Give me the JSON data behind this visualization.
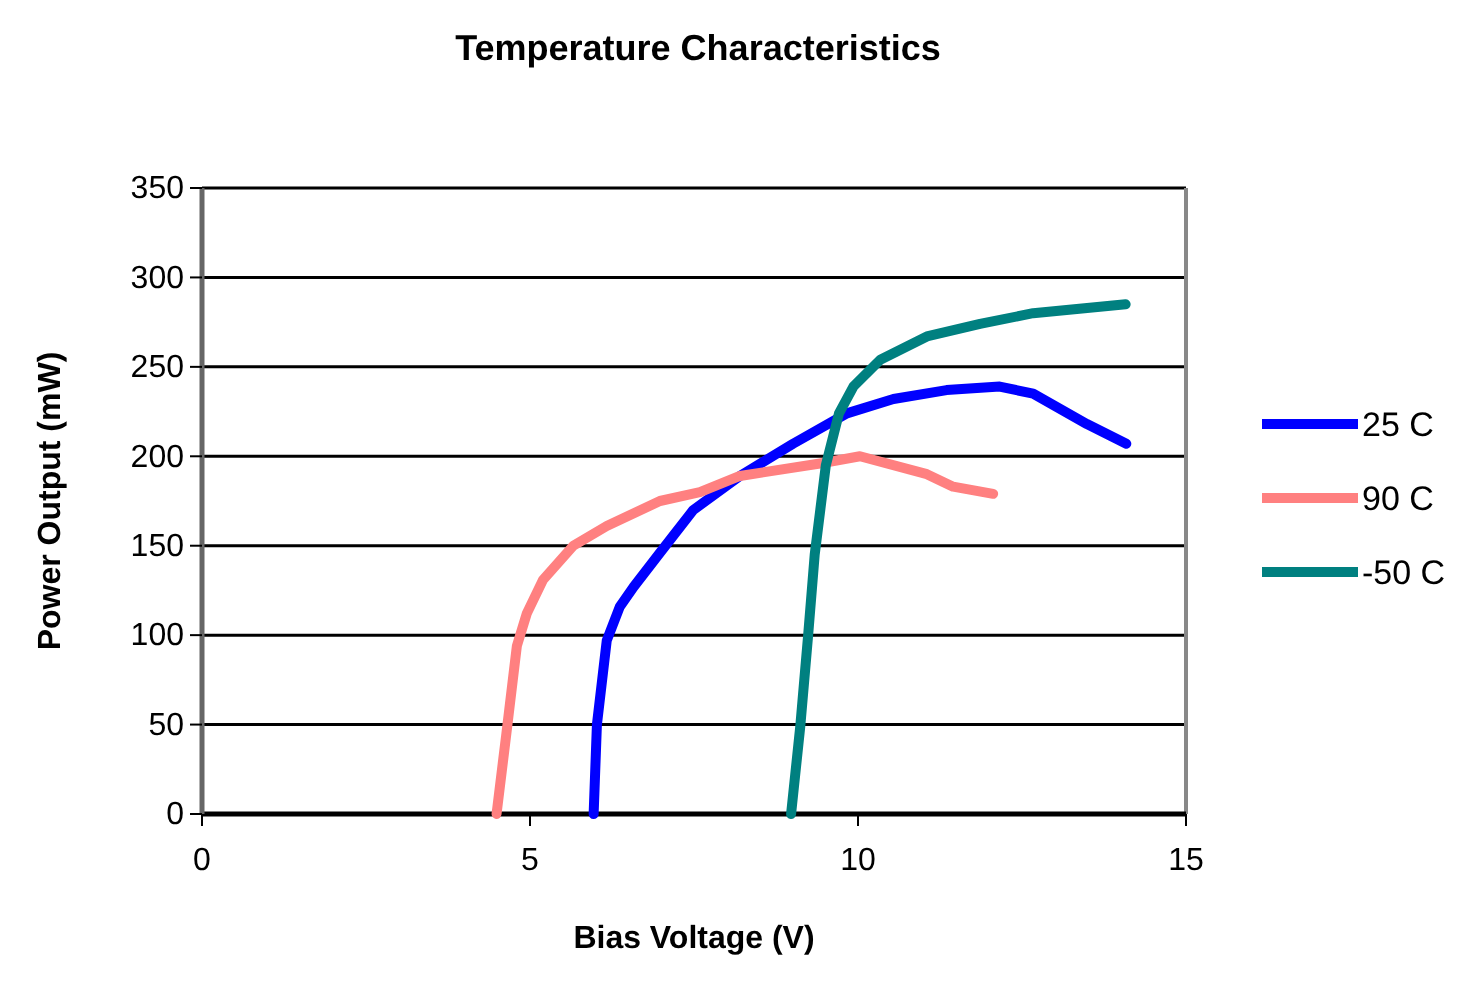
{
  "chart_data": {
    "type": "line",
    "title": "Temperature Characteristics",
    "xlabel": "Bias Voltage (V)",
    "ylabel": "Power Output (mW)",
    "xlim": [
      0,
      15
    ],
    "xticks": [
      0,
      5,
      10,
      15
    ],
    "ylim": [
      0,
      350
    ],
    "yticks": [
      0,
      50,
      100,
      150,
      200,
      250,
      300,
      350
    ],
    "grid": "y",
    "legend": "right",
    "marker": "none",
    "line_style": "solid",
    "series": [
      {
        "name": "25 C",
        "color": "#0000ff",
        "x": [
          5.97,
          6.02,
          6.17,
          6.37,
          6.58,
          6.98,
          7.49,
          8.2,
          9.01,
          9.83,
          10.54,
          11.35,
          12.16,
          12.67,
          13.49,
          14.09
        ],
        "values": [
          0,
          50,
          97,
          116,
          127,
          146,
          170,
          189,
          207,
          224,
          232,
          237,
          239,
          235,
          218,
          207
        ]
      },
      {
        "name": "90 C",
        "color": "#ff8080",
        "x": [
          4.49,
          4.64,
          4.8,
          4.95,
          5.2,
          5.66,
          6.17,
          6.98,
          7.59,
          8.2,
          9.42,
          10.03,
          11.05,
          11.45,
          12.06
        ],
        "values": [
          0,
          45,
          94,
          112,
          131,
          150,
          161,
          175,
          180,
          189,
          196,
          200,
          190,
          183,
          179
        ]
      },
      {
        "name": "-50 C",
        "color": "#008080",
        "x": [
          8.98,
          9.12,
          9.24,
          9.34,
          9.51,
          9.71,
          9.93,
          10.34,
          11.05,
          11.86,
          12.67,
          14.08
        ],
        "values": [
          0,
          49,
          100,
          145,
          195,
          224,
          239,
          254,
          267,
          274,
          280,
          285
        ]
      }
    ]
  }
}
